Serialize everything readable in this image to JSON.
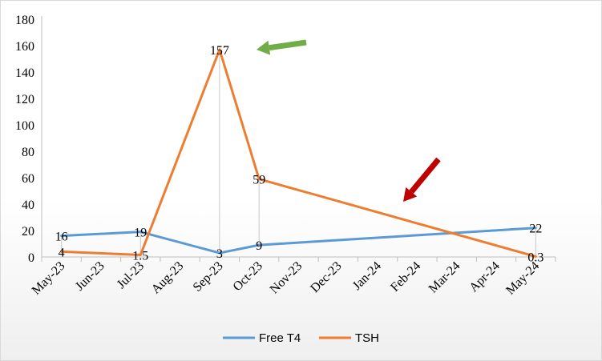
{
  "chart_data": {
    "type": "line",
    "title": "",
    "xlabel": "",
    "ylabel": "",
    "ylim": [
      0,
      180
    ],
    "yticks": [
      0,
      20,
      40,
      60,
      80,
      100,
      120,
      140,
      160,
      180
    ],
    "categories": [
      "May-23",
      "Jun-23",
      "Jul-23",
      "Aug-23",
      "Sep-23",
      "Oct-23",
      "Nov-23",
      "Dec-23",
      "Jan-24",
      "Feb-24",
      "Mar-24",
      "Apr-24",
      "May-24"
    ],
    "grid": false,
    "legend": "bottom",
    "series": [
      {
        "name": "Free T4",
        "color": "#5b9bd5",
        "points": [
          {
            "x": "May-23",
            "y": 16,
            "label": "16"
          },
          {
            "x": "Jul-23",
            "y": 19,
            "label": "19"
          },
          {
            "x": "Sep-23",
            "y": 3,
            "label": "3"
          },
          {
            "x": "Oct-23",
            "y": 9,
            "label": "9"
          },
          {
            "x": "May-24",
            "y": 22,
            "label": "22"
          }
        ]
      },
      {
        "name": "TSH",
        "color": "#ed7d31",
        "points": [
          {
            "x": "May-23",
            "y": 4,
            "label": "4"
          },
          {
            "x": "Jul-23",
            "y": 1.5,
            "label": "1.5"
          },
          {
            "x": "Sep-23",
            "y": 157,
            "label": "157"
          },
          {
            "x": "Oct-23",
            "y": 59,
            "label": "59"
          },
          {
            "x": "May-24",
            "y": 0.3,
            "label": "0.3"
          }
        ]
      }
    ],
    "annotations": [
      {
        "type": "arrow",
        "color": "#70ad47",
        "points_to": "TSH Sep-23"
      },
      {
        "type": "arrow",
        "color": "#c00000",
        "points_to": "TSH Jan-24"
      }
    ]
  }
}
